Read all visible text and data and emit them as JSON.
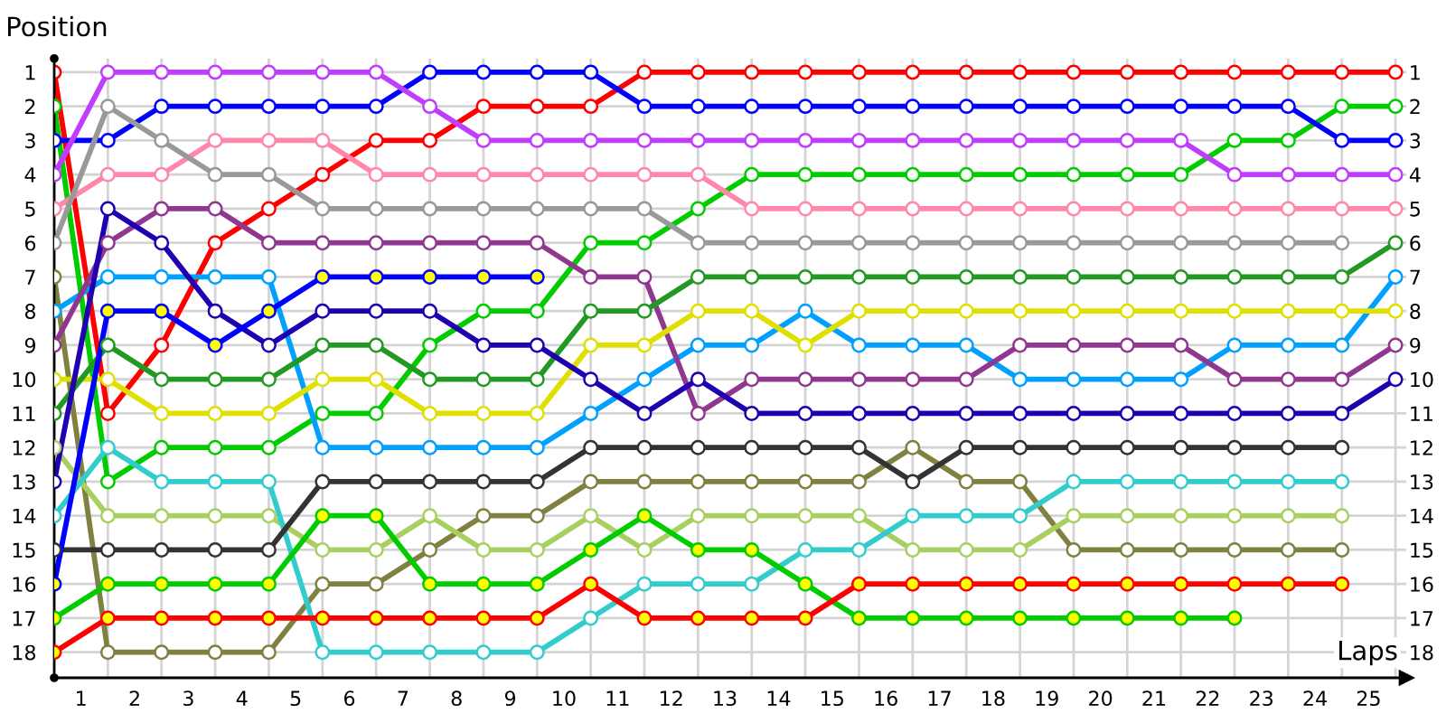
{
  "chart_data": {
    "type": "line",
    "xlabel": "Laps",
    "ylabel": "Position",
    "marker": "circle",
    "grid": true,
    "x": [
      0,
      1,
      2,
      3,
      4,
      5,
      6,
      7,
      8,
      9,
      10,
      11,
      12,
      13,
      14,
      15,
      16,
      17,
      18,
      19,
      20,
      21,
      22,
      23,
      24,
      25
    ],
    "xlim": [
      0,
      25.2
    ],
    "xticks": [
      {
        "value": 0,
        "label": null
      },
      {
        "value": 0.5,
        "label": "1"
      },
      {
        "value": 1,
        "label": null
      },
      {
        "value": 1.5,
        "label": "2"
      },
      {
        "value": 2,
        "label": null
      },
      {
        "value": 2.5,
        "label": "3"
      },
      {
        "value": 3,
        "label": null
      },
      {
        "value": 3.5,
        "label": "4"
      },
      {
        "value": 4,
        "label": null
      },
      {
        "value": 4.5,
        "label": "5"
      },
      {
        "value": 5,
        "label": null
      },
      {
        "value": 5.5,
        "label": "6"
      },
      {
        "value": 6,
        "label": null
      },
      {
        "value": 6.5,
        "label": "7"
      },
      {
        "value": 7,
        "label": null
      },
      {
        "value": 7.5,
        "label": "8"
      },
      {
        "value": 8,
        "label": null
      },
      {
        "value": 8.5,
        "label": "9"
      },
      {
        "value": 9,
        "label": null
      },
      {
        "value": 9.5,
        "label": "10"
      },
      {
        "value": 10,
        "label": null
      },
      {
        "value": 10.5,
        "label": "11"
      },
      {
        "value": 11,
        "label": null
      },
      {
        "value": 11.5,
        "label": "12"
      },
      {
        "value": 12,
        "label": null
      },
      {
        "value": 12.5,
        "label": "13"
      },
      {
        "value": 13,
        "label": null
      },
      {
        "value": 13.5,
        "label": "14"
      },
      {
        "value": 14,
        "label": null
      },
      {
        "value": 14.5,
        "label": "15"
      },
      {
        "value": 15,
        "label": null
      },
      {
        "value": 15.5,
        "label": "16"
      },
      {
        "value": 16,
        "label": null
      },
      {
        "value": 16.5,
        "label": "17"
      },
      {
        "value": 17,
        "label": null
      },
      {
        "value": 17.5,
        "label": "18"
      },
      {
        "value": 18,
        "label": null
      },
      {
        "value": 18.5,
        "label": "19"
      },
      {
        "value": 19,
        "label": null
      },
      {
        "value": 19.5,
        "label": "20"
      },
      {
        "value": 20,
        "label": null
      },
      {
        "value": 20.5,
        "label": "21"
      },
      {
        "value": 21,
        "label": null
      },
      {
        "value": 21.5,
        "label": "22"
      },
      {
        "value": 22,
        "label": null
      },
      {
        "value": 22.5,
        "label": "23"
      },
      {
        "value": 23,
        "label": null
      },
      {
        "value": 23.5,
        "label": "24"
      },
      {
        "value": 24,
        "label": null
      },
      {
        "value": 24.5,
        "label": "25"
      },
      {
        "value": 25,
        "label": null
      }
    ],
    "ylim": [
      18.75,
      0.6
    ],
    "yticks": [
      1,
      2,
      3,
      4,
      5,
      6,
      7,
      8,
      9,
      10,
      11,
      12,
      13,
      14,
      15,
      16,
      17,
      18
    ],
    "y2lim": [
      18.75,
      0.6
    ],
    "y2ticks": [
      1,
      2,
      3,
      4,
      5,
      6,
      7,
      8,
      9,
      10,
      11,
      12,
      13,
      14,
      15,
      16,
      17,
      18
    ],
    "series": [
      {
        "color": "#ff0000",
        "values": [
          1,
          11,
          9,
          6,
          5,
          4,
          3,
          3,
          2,
          2,
          2,
          1,
          1,
          1,
          1,
          1,
          1,
          1,
          1,
          1,
          1,
          1,
          1,
          1,
          1,
          1
        ]
      },
      {
        "color": "#00cc00",
        "values": [
          2,
          13,
          12,
          12,
          12,
          11,
          11,
          9,
          8,
          8,
          6,
          6,
          5,
          4,
          4,
          4,
          4,
          4,
          4,
          4,
          4,
          4,
          3,
          3,
          2,
          2
        ]
      },
      {
        "color": "#0000ff",
        "values": [
          3,
          3,
          2,
          2,
          2,
          2,
          2,
          1,
          1,
          1,
          1,
          2,
          2,
          2,
          2,
          2,
          2,
          2,
          2,
          2,
          2,
          2,
          2,
          2,
          3,
          3
        ]
      },
      {
        "color": "#c03cff",
        "values": [
          4,
          1,
          1,
          1,
          1,
          1,
          1,
          2,
          3,
          3,
          3,
          3,
          3,
          3,
          3,
          3,
          3,
          3,
          3,
          3,
          3,
          3,
          4,
          4,
          4,
          4
        ]
      },
      {
        "color": "#ff88aa",
        "values": [
          5,
          4,
          4,
          3,
          3,
          3,
          4,
          4,
          4,
          4,
          4,
          4,
          4,
          5,
          5,
          5,
          5,
          5,
          5,
          5,
          5,
          5,
          5,
          5,
          5,
          5
        ]
      },
      {
        "color": "#999999",
        "values": [
          6,
          2,
          3,
          4,
          4,
          5,
          5,
          5,
          5,
          5,
          5,
          5,
          6,
          6,
          6,
          6,
          6,
          6,
          6,
          6,
          6,
          6,
          6,
          6,
          6,
          null
        ]
      },
      {
        "color": "#808040",
        "values": [
          7,
          18,
          18,
          18,
          18,
          16,
          16,
          15,
          14,
          14,
          13,
          13,
          13,
          13,
          13,
          13,
          12,
          13,
          13,
          15,
          15,
          15,
          15,
          15,
          15,
          null
        ]
      },
      {
        "color": "#00a0ff",
        "values": [
          8,
          7,
          7,
          7,
          7,
          12,
          12,
          12,
          12,
          12,
          11,
          10,
          9,
          9,
          8,
          9,
          9,
          9,
          10,
          10,
          10,
          10,
          9,
          9,
          9,
          7
        ]
      },
      {
        "color": "#903890",
        "values": [
          9,
          6,
          5,
          5,
          6,
          6,
          6,
          6,
          6,
          6,
          7,
          7,
          11,
          10,
          10,
          10,
          10,
          10,
          9,
          9,
          9,
          9,
          10,
          10,
          10,
          9
        ]
      },
      {
        "color": "#e0e000",
        "values": [
          10,
          10,
          11,
          11,
          11,
          10,
          10,
          11,
          11,
          11,
          9,
          9,
          8,
          8,
          9,
          8,
          8,
          8,
          8,
          8,
          8,
          8,
          8,
          8,
          8,
          8
        ]
      },
      {
        "color": "#229922",
        "values": [
          11,
          9,
          10,
          10,
          10,
          9,
          9,
          10,
          10,
          10,
          8,
          8,
          7,
          7,
          7,
          7,
          7,
          7,
          7,
          7,
          7,
          7,
          7,
          7,
          7,
          6
        ]
      },
      {
        "color": "#a8d060",
        "values": [
          12,
          14,
          14,
          14,
          14,
          15,
          15,
          14,
          15,
          15,
          14,
          15,
          14,
          14,
          14,
          14,
          15,
          15,
          15,
          14,
          14,
          14,
          14,
          14,
          14,
          null
        ]
      },
      {
        "color": "#2000b0",
        "values": [
          13,
          5,
          6,
          8,
          9,
          8,
          8,
          8,
          9,
          9,
          10,
          11,
          10,
          11,
          11,
          11,
          11,
          11,
          11,
          11,
          11,
          11,
          11,
          11,
          11,
          10
        ]
      },
      {
        "color": "#33cccc",
        "values": [
          14,
          12,
          13,
          13,
          13,
          18,
          18,
          18,
          18,
          18,
          17,
          16,
          16,
          16,
          15,
          15,
          14,
          14,
          14,
          13,
          13,
          13,
          13,
          13,
          13,
          null
        ]
      },
      {
        "color": "#333333",
        "values": [
          15,
          15,
          15,
          15,
          15,
          13,
          13,
          13,
          13,
          13,
          12,
          12,
          12,
          12,
          12,
          12,
          13,
          12,
          12,
          12,
          12,
          12,
          12,
          12,
          12,
          null
        ]
      },
      {
        "color": "#0000ff",
        "values": [
          16,
          8,
          8,
          9,
          8,
          7,
          7,
          7,
          7,
          7,
          null,
          null,
          null,
          null,
          null,
          null,
          null,
          null,
          null,
          null,
          null,
          null,
          null,
          null,
          null,
          null
        ],
        "colors": [
          "#ffff00",
          "#ffff00",
          "#ffff00",
          "#ffff00",
          "#ffff00",
          "#ffff00",
          "#ffff00",
          "#ffff00",
          "#ffff00",
          "#ffff00",
          null,
          null,
          null,
          null,
          null,
          null,
          null,
          null,
          null,
          null,
          null,
          null,
          null,
          null,
          null,
          null
        ]
      },
      {
        "color": "#00cc00",
        "values": [
          17,
          16,
          16,
          16,
          16,
          14,
          14,
          16,
          16,
          16,
          15,
          14,
          15,
          15,
          16,
          17,
          17,
          17,
          17,
          17,
          17,
          17,
          17,
          null,
          null,
          null
        ],
        "colors": [
          "#ffff00",
          "#ffff00",
          "#ffff00",
          "#ffff00",
          "#ffff00",
          "#ffff00",
          "#ffff00",
          "#ffff00",
          "#ffff00",
          "#ffff00",
          "#ffff00",
          "#ffff00",
          "#ffff00",
          "#ffff00",
          "#ffff00",
          "#ffff00",
          "#ffff00",
          "#ffff00",
          "#ffff00",
          "#ffff00",
          "#ffff00",
          "#ffff00",
          "#ffff00",
          null,
          null,
          null
        ]
      },
      {
        "color": "#ff0000",
        "values": [
          18,
          17,
          17,
          17,
          17,
          17,
          17,
          17,
          17,
          17,
          16,
          17,
          17,
          17,
          17,
          16,
          16,
          16,
          16,
          16,
          16,
          16,
          16,
          16,
          16,
          null
        ],
        "colors": [
          "#ffff00",
          "#ffff00",
          "#ffff00",
          "#ffff00",
          "#ffff00",
          "#ffff00",
          "#ffff00",
          "#ffff00",
          "#ffff00",
          "#ffff00",
          "#ffff00",
          "#ffff00",
          "#ffff00",
          "#ffff00",
          "#ffff00",
          "#ffff00",
          "#ffff00",
          "#ffff00",
          "#ffff00",
          "#ffff00",
          "#ffff00",
          "#ffff00",
          "#ffff00",
          "#ffff00",
          "#ffff00",
          null
        ]
      }
    ]
  }
}
